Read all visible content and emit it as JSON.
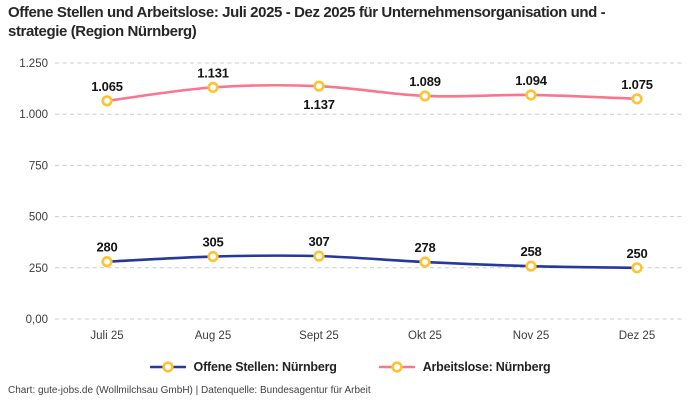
{
  "chart_data": {
    "type": "line",
    "title": "Offene Stellen und Arbeitslose: Juli 2025 - Dez 2025 für Unternehmensorganisation und -strategie (Region Nürnberg)",
    "categories": [
      "Juli 25",
      "Aug 25",
      "Sept 25",
      "Okt 25",
      "Nov 25",
      "Dez 25"
    ],
    "series": [
      {
        "name": "Offene Stellen: Nürnberg",
        "values": [
          280,
          305,
          307,
          278,
          258,
          250
        ],
        "value_labels": [
          "280",
          "305",
          "307",
          "278",
          "258",
          "250"
        ],
        "label_positions": [
          "above",
          "above",
          "above",
          "above",
          "above",
          "above"
        ],
        "color": "#26389b"
      },
      {
        "name": "Arbeitslose: Nürnberg",
        "values": [
          1065,
          1131,
          1137,
          1089,
          1094,
          1075
        ],
        "value_labels": [
          "1.065",
          "1.131",
          "1.137",
          "1.089",
          "1.094",
          "1.075"
        ],
        "label_positions": [
          "above",
          "above",
          "below",
          "above",
          "above",
          "above"
        ],
        "color": "#f8768f"
      }
    ],
    "marker": {
      "fill": "#ffffff",
      "stroke": "#fdc331"
    },
    "y_ticks": [
      {
        "value": 0,
        "label": "0,00"
      },
      {
        "value": 250,
        "label": "250"
      },
      {
        "value": 500,
        "label": "500"
      },
      {
        "value": 750,
        "label": "750"
      },
      {
        "value": 1000,
        "label": "1.000"
      },
      {
        "value": 1250,
        "label": "1.250"
      }
    ],
    "ylim": [
      0,
      1250
    ],
    "grid": "horizontal-dashed",
    "grid_color": "#cbcbcb",
    "legend_position": "bottom"
  },
  "footer": {
    "caption": "Chart: gute-jobs.de (Wollmilchsau GmbH) | Datenquelle: Bundesagentur für Arbeit"
  }
}
